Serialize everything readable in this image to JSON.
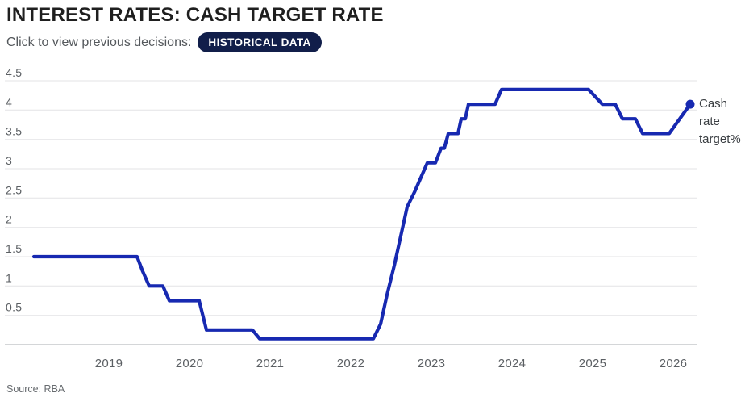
{
  "header": {
    "title": "INTEREST RATES: CASH TARGET RATE",
    "subtitle": "Click to view previous decisions:",
    "button_label": "HISTORICAL DATA"
  },
  "source": "Source: RBA",
  "colors": {
    "line": "#1729b1",
    "button_bg": "#111e4a",
    "button_text": "#ffffff",
    "grid": "#e3e3e5",
    "axis": "#a9adb2",
    "tick_text": "#5b5f63",
    "title_text": "#1f1f1f",
    "subtitle_text": "#54585c",
    "series_label_text": "#3a3e42",
    "source_text": "#686c70"
  },
  "chart_data": {
    "type": "line",
    "title": "Interest rates: cash target rate",
    "xlabel": "",
    "ylabel": "",
    "grid": "horizontal",
    "xlim": [
      2018.07,
      2026.3
    ],
    "ylim": [
      0,
      4.5
    ],
    "legend_position": "right-of-last-point",
    "series": [
      {
        "name": "Cash rate target%",
        "points": [
          [
            2018.07,
            1.5
          ],
          [
            2019.35,
            1.5
          ],
          [
            2019.42,
            1.25
          ],
          [
            2019.5,
            1.0
          ],
          [
            2019.67,
            1.0
          ],
          [
            2019.75,
            0.75
          ],
          [
            2020.12,
            0.75
          ],
          [
            2020.21,
            0.25
          ],
          [
            2020.78,
            0.25
          ],
          [
            2020.87,
            0.1
          ],
          [
            2022.28,
            0.1
          ],
          [
            2022.37,
            0.35
          ],
          [
            2022.45,
            0.85
          ],
          [
            2022.54,
            1.35
          ],
          [
            2022.62,
            1.85
          ],
          [
            2022.7,
            2.35
          ],
          [
            2022.79,
            2.6
          ],
          [
            2022.87,
            2.85
          ],
          [
            2022.95,
            3.1
          ],
          [
            2023.05,
            3.1
          ],
          [
            2023.12,
            3.35
          ],
          [
            2023.16,
            3.35
          ],
          [
            2023.21,
            3.6
          ],
          [
            2023.33,
            3.6
          ],
          [
            2023.37,
            3.85
          ],
          [
            2023.42,
            3.85
          ],
          [
            2023.46,
            4.1
          ],
          [
            2023.79,
            4.1
          ],
          [
            2023.87,
            4.35
          ],
          [
            2024.95,
            4.35
          ],
          [
            2025.12,
            4.1
          ],
          [
            2025.28,
            4.1
          ],
          [
            2025.37,
            3.85
          ],
          [
            2025.53,
            3.85
          ],
          [
            2025.62,
            3.6
          ],
          [
            2025.95,
            3.6
          ],
          [
            2026.21,
            4.1
          ]
        ]
      }
    ],
    "end_point": {
      "x": 2026.21,
      "y": 4.1
    },
    "x_ticks": [
      {
        "v": 2019,
        "label": "2019"
      },
      {
        "v": 2020,
        "label": "2020"
      },
      {
        "v": 2021,
        "label": "2021"
      },
      {
        "v": 2022,
        "label": "2022"
      },
      {
        "v": 2023,
        "label": "2023"
      },
      {
        "v": 2024,
        "label": "2024"
      },
      {
        "v": 2025,
        "label": "2025"
      },
      {
        "v": 2026,
        "label": "2026"
      }
    ],
    "y_ticks": [
      {
        "v": 0.5,
        "label": "0.5"
      },
      {
        "v": 1,
        "label": "1"
      },
      {
        "v": 1.5,
        "label": "1.5"
      },
      {
        "v": 2,
        "label": "2"
      },
      {
        "v": 2.5,
        "label": "2.5"
      },
      {
        "v": 3,
        "label": "3"
      },
      {
        "v": 3.5,
        "label": "3.5"
      },
      {
        "v": 4,
        "label": "4"
      },
      {
        "v": 4.5,
        "label": "4.5"
      }
    ]
  }
}
